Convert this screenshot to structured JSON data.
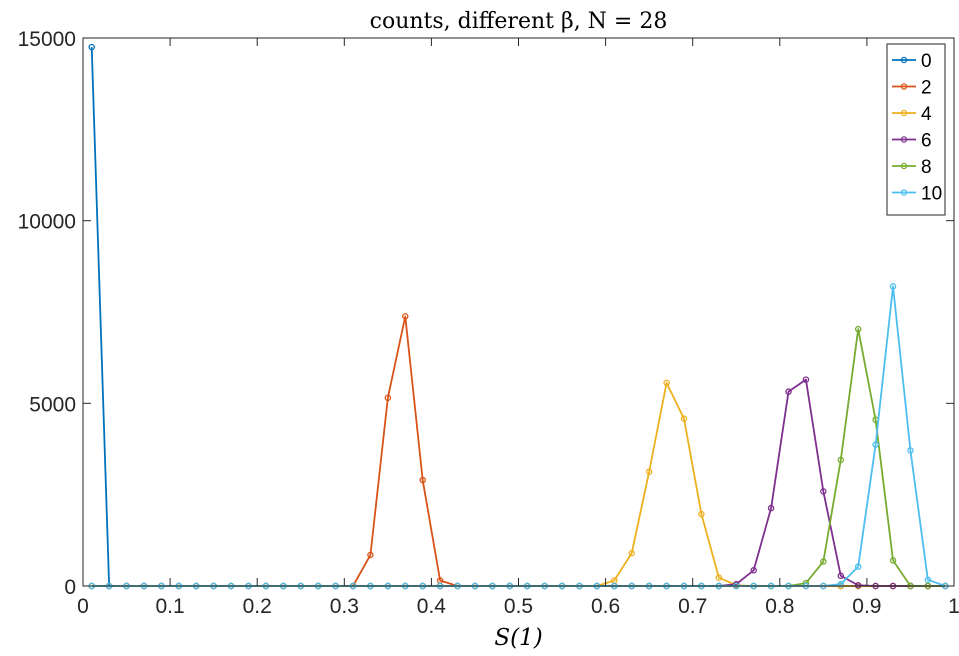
{
  "chart_data": {
    "type": "line",
    "title": "counts, different β, N = 28",
    "xlabel": "S(1)",
    "ylabel": "",
    "xlim": [
      0,
      1
    ],
    "ylim": [
      0,
      15000
    ],
    "xticks": [
      0,
      0.1,
      0.2,
      0.3,
      0.4,
      0.5,
      0.6,
      0.7,
      0.8,
      0.9,
      1
    ],
    "xtick_labels": [
      "0",
      "0.1",
      "0.2",
      "0.3",
      "0.4",
      "0.5",
      "0.6",
      "0.7",
      "0.8",
      "0.9",
      "1"
    ],
    "yticks": [
      0,
      5000,
      10000,
      15000
    ],
    "ytick_labels": [
      "0",
      "5000",
      "10000",
      "15000"
    ],
    "grid": false,
    "legend_position": "top-right",
    "x": [
      0.01,
      0.03,
      0.05,
      0.07,
      0.09,
      0.11,
      0.13,
      0.15,
      0.17,
      0.19,
      0.21,
      0.23,
      0.25,
      0.27,
      0.29,
      0.31,
      0.33,
      0.35,
      0.37,
      0.39,
      0.41,
      0.43,
      0.45,
      0.47,
      0.49,
      0.51,
      0.53,
      0.55,
      0.57,
      0.59,
      0.61,
      0.63,
      0.65,
      0.67,
      0.69,
      0.71,
      0.73,
      0.75,
      0.77,
      0.79,
      0.81,
      0.83,
      0.85,
      0.87,
      0.89,
      0.91,
      0.93,
      0.95,
      0.97,
      0.99
    ],
    "series": [
      {
        "name": "0",
        "color": "#0072BD",
        "values": [
          14750,
          0,
          0,
          0,
          0,
          0,
          0,
          0,
          0,
          0,
          0,
          0,
          0,
          0,
          0,
          0,
          0,
          0,
          0,
          0,
          0,
          0,
          0,
          0,
          0,
          0,
          0,
          0,
          0,
          0,
          0,
          0,
          0,
          0,
          0,
          0,
          0,
          0,
          0,
          0,
          0,
          0,
          0,
          0,
          0,
          0,
          0,
          0,
          0,
          0
        ]
      },
      {
        "name": "2",
        "color": "#D95319",
        "values": [
          0,
          0,
          0,
          0,
          0,
          0,
          0,
          0,
          0,
          0,
          0,
          0,
          0,
          0,
          0,
          0,
          850,
          5150,
          7380,
          2900,
          150,
          0,
          0,
          0,
          0,
          0,
          0,
          0,
          0,
          0,
          0,
          0,
          0,
          0,
          0,
          0,
          0,
          0,
          0,
          0,
          0,
          0,
          0,
          0,
          0,
          0,
          0,
          0,
          0,
          0
        ]
      },
      {
        "name": "4",
        "color": "#EDB120",
        "values": [
          0,
          0,
          0,
          0,
          0,
          0,
          0,
          0,
          0,
          0,
          0,
          0,
          0,
          0,
          0,
          0,
          0,
          0,
          0,
          0,
          0,
          0,
          0,
          0,
          0,
          0,
          0,
          0,
          0,
          0,
          150,
          900,
          3130,
          5560,
          4580,
          1970,
          230,
          20,
          0,
          0,
          0,
          0,
          0,
          0,
          0,
          0,
          0,
          0,
          0,
          0
        ]
      },
      {
        "name": "6",
        "color": "#7E2F8E",
        "values": [
          0,
          0,
          0,
          0,
          0,
          0,
          0,
          0,
          0,
          0,
          0,
          0,
          0,
          0,
          0,
          0,
          0,
          0,
          0,
          0,
          0,
          0,
          0,
          0,
          0,
          0,
          0,
          0,
          0,
          0,
          0,
          0,
          0,
          0,
          0,
          0,
          0,
          50,
          430,
          2130,
          5320,
          5650,
          2590,
          280,
          20,
          0,
          0,
          0,
          0,
          0
        ]
      },
      {
        "name": "8",
        "color": "#77AC30",
        "values": [
          0,
          0,
          0,
          0,
          0,
          0,
          0,
          0,
          0,
          0,
          0,
          0,
          0,
          0,
          0,
          0,
          0,
          0,
          0,
          0,
          0,
          0,
          0,
          0,
          0,
          0,
          0,
          0,
          0,
          0,
          0,
          0,
          0,
          0,
          0,
          0,
          0,
          0,
          0,
          0,
          0,
          80,
          670,
          3450,
          7030,
          4550,
          700,
          0,
          0,
          0
        ]
      },
      {
        "name": "10",
        "color": "#4DBEEE",
        "values": [
          0,
          0,
          0,
          0,
          0,
          0,
          0,
          0,
          0,
          0,
          0,
          0,
          0,
          0,
          0,
          0,
          0,
          0,
          0,
          0,
          0,
          0,
          0,
          0,
          0,
          0,
          0,
          0,
          0,
          0,
          0,
          0,
          0,
          0,
          0,
          0,
          0,
          0,
          0,
          0,
          0,
          0,
          0,
          50,
          530,
          3870,
          8200,
          3710,
          170,
          0
        ]
      }
    ]
  }
}
